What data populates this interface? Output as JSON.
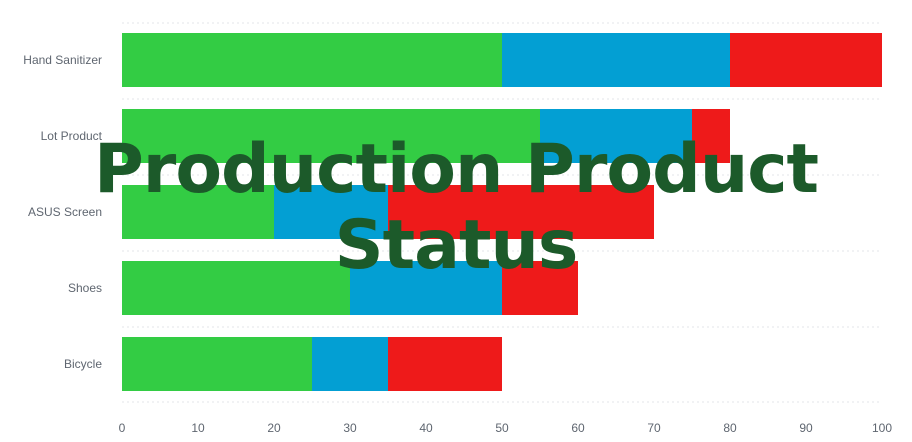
{
  "overlay": {
    "line1": "Production Product",
    "line2": "Status"
  },
  "chart_data": {
    "type": "bar",
    "orientation": "horizontal",
    "stacked": true,
    "categories": [
      "Hand Sanitizer",
      "Lot Product",
      "ASUS Screen",
      "Shoes",
      "Bicycle"
    ],
    "series": [
      {
        "color": "#33cc44",
        "values": [
          50,
          55,
          20,
          30,
          25
        ]
      },
      {
        "color": "#039fd3",
        "values": [
          30,
          20,
          15,
          20,
          10
        ]
      },
      {
        "color": "#ee1a1a",
        "values": [
          20,
          5,
          35,
          10,
          15
        ]
      }
    ],
    "xlim": [
      0,
      100
    ],
    "xticks": [
      "0",
      "10",
      "20",
      "30",
      "40",
      "50",
      "60",
      "70",
      "80",
      "90",
      "100"
    ],
    "grid": "horizontal-dashed",
    "legend": "none"
  }
}
